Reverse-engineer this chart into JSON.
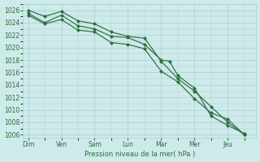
{
  "bg_color": "#ceeaea",
  "grid_color": "#aacfcf",
  "line_color": "#2d6e3e",
  "marker_color": "#2d6e3e",
  "xlabel": "Pression niveau de la mer( hPa )",
  "ylim": [
    1005.5,
    1027.0
  ],
  "yticks": [
    1006,
    1008,
    1010,
    1012,
    1014,
    1016,
    1018,
    1020,
    1022,
    1024,
    1026
  ],
  "day_labels": [
    "Dim",
    "Ven",
    "Sam",
    "Lun",
    "Mar",
    "Mer",
    "Jeu"
  ],
  "day_positions": [
    0.0,
    1.0,
    2.0,
    3.0,
    4.0,
    5.0,
    6.0
  ],
  "line1_x": [
    0.0,
    0.5,
    1.0,
    1.5,
    2.0,
    2.5,
    3.0,
    3.5,
    4.0,
    4.5,
    5.0,
    5.5,
    6.0,
    6.5
  ],
  "line1_y": [
    1026.0,
    1025.0,
    1025.8,
    1024.3,
    1023.8,
    1022.5,
    1021.8,
    1021.5,
    1017.8,
    1015.0,
    1013.0,
    1010.5,
    1008.0,
    1006.0
  ],
  "line2_x": [
    0.0,
    0.5,
    1.0,
    1.5,
    2.0,
    2.5,
    3.0,
    3.5,
    4.0,
    4.25,
    4.5,
    5.0,
    5.5,
    6.0,
    6.5
  ],
  "line2_y": [
    1025.5,
    1024.0,
    1025.2,
    1023.5,
    1023.0,
    1021.8,
    1021.6,
    1020.5,
    1018.0,
    1017.8,
    1015.5,
    1013.5,
    1009.0,
    1007.5,
    1006.2
  ],
  "line3_x": [
    0.0,
    0.5,
    1.0,
    1.5,
    2.0,
    2.5,
    3.0,
    3.5,
    4.0,
    4.5,
    5.0,
    5.5,
    6.0,
    6.5
  ],
  "line3_y": [
    1025.2,
    1023.8,
    1024.5,
    1022.8,
    1022.5,
    1020.8,
    1020.5,
    1019.8,
    1016.2,
    1014.5,
    1011.8,
    1009.5,
    1008.5,
    1006.0
  ]
}
